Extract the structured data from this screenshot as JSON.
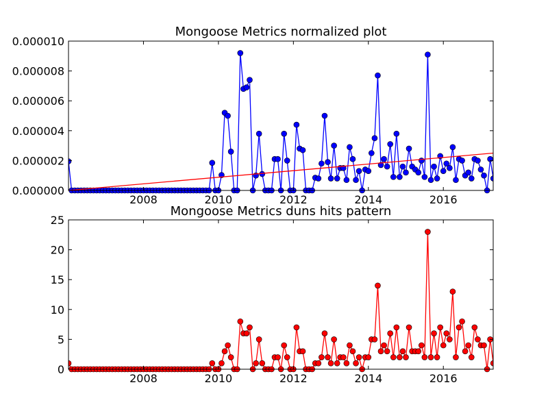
{
  "chart_data": [
    {
      "type": "line",
      "title": "Mongoose Metrics normalized plot",
      "xlabel": "",
      "ylabel": "",
      "xlim": [
        2006.0,
        2017.33
      ],
      "ylim": [
        0,
        1e-05
      ],
      "xticks": [
        "2008",
        "2010",
        "2012",
        "2014",
        "2016"
      ],
      "yticks": [
        "0.000000",
        "0.000002",
        "0.000004",
        "0.000006",
        "0.000008",
        "0.000010"
      ],
      "grid": false,
      "legend": "none",
      "series": [
        {
          "color": "#0000ff",
          "marker": "circle",
          "x": [
            2006.0,
            2006.083,
            2006.167,
            2006.25,
            2006.333,
            2006.417,
            2006.5,
            2006.583,
            2006.667,
            2006.75,
            2006.833,
            2006.917,
            2007.0,
            2007.083,
            2007.167,
            2007.25,
            2007.333,
            2007.417,
            2007.5,
            2007.583,
            2007.667,
            2007.75,
            2007.833,
            2007.917,
            2008.0,
            2008.083,
            2008.167,
            2008.25,
            2008.333,
            2008.417,
            2008.5,
            2008.583,
            2008.667,
            2008.75,
            2008.833,
            2008.917,
            2009.0,
            2009.083,
            2009.167,
            2009.25,
            2009.333,
            2009.417,
            2009.5,
            2009.583,
            2009.667,
            2009.75,
            2009.833,
            2009.917,
            2010.0,
            2010.083,
            2010.167,
            2010.25,
            2010.333,
            2010.417,
            2010.5,
            2010.583,
            2010.667,
            2010.75,
            2010.833,
            2010.917,
            2011.0,
            2011.083,
            2011.167,
            2011.25,
            2011.333,
            2011.417,
            2011.5,
            2011.583,
            2011.667,
            2011.75,
            2011.833,
            2011.917,
            2012.0,
            2012.083,
            2012.167,
            2012.25,
            2012.333,
            2012.417,
            2012.5,
            2012.583,
            2012.667,
            2012.75,
            2012.833,
            2012.917,
            2013.0,
            2013.083,
            2013.167,
            2013.25,
            2013.333,
            2013.417,
            2013.5,
            2013.583,
            2013.667,
            2013.75,
            2013.833,
            2013.917,
            2014.0,
            2014.083,
            2014.167,
            2014.25,
            2014.333,
            2014.417,
            2014.5,
            2014.583,
            2014.667,
            2014.75,
            2014.833,
            2014.917,
            2015.0,
            2015.083,
            2015.167,
            2015.25,
            2015.333,
            2015.417,
            2015.5,
            2015.583,
            2015.667,
            2015.75,
            2015.833,
            2015.917,
            2016.0,
            2016.083,
            2016.167,
            2016.25,
            2016.333,
            2016.417,
            2016.5,
            2016.583,
            2016.667,
            2016.75,
            2016.833,
            2016.917,
            2017.0,
            2017.083,
            2017.167,
            2017.25,
            2017.333
          ],
          "y": [
            1.95e-06,
            0,
            0,
            0,
            0,
            0,
            0,
            0,
            0,
            0,
            0,
            0,
            0,
            0,
            0,
            0,
            0,
            0,
            0,
            0,
            0,
            0,
            0,
            0,
            0,
            0,
            0,
            0,
            0,
            0,
            0,
            0,
            0,
            0,
            0,
            0,
            0,
            0,
            0,
            0,
            0,
            0,
            0,
            0,
            0,
            0,
            1.85e-06,
            0,
            0,
            1.03e-06,
            5.2e-06,
            5e-06,
            2.6e-06,
            0,
            0,
            9.2e-06,
            6.8e-06,
            6.9e-06,
            7.4e-06,
            0,
            1e-06,
            3.8e-06,
            1.1e-06,
            0,
            0,
            0,
            2.1e-06,
            2.1e-06,
            0,
            3.8e-06,
            2e-06,
            0,
            0,
            4.4e-06,
            2.8e-06,
            2.7e-06,
            0,
            0,
            0,
            8.5e-07,
            8e-07,
            1.8e-06,
            5e-06,
            1.9e-06,
            8e-07,
            3e-06,
            8e-07,
            1.5e-06,
            1.5e-06,
            7e-07,
            2.9e-06,
            2.1e-06,
            7e-07,
            1.3e-06,
            0,
            1.4e-06,
            1.3e-06,
            2.5e-06,
            3.5e-06,
            7.7e-06,
            1.7e-06,
            2.1e-06,
            1.6e-06,
            3.1e-06,
            9e-07,
            3.8e-06,
            9e-07,
            1.6e-06,
            1.2e-06,
            2.8e-06,
            1.6e-06,
            1.4e-06,
            1.2e-06,
            2e-06,
            9e-07,
            9.1e-06,
            7e-07,
            1.6e-06,
            8e-07,
            2.3e-06,
            1.3e-06,
            1.8e-06,
            1.5e-06,
            2.9e-06,
            7e-07,
            2.1e-06,
            2e-06,
            1e-06,
            1.2e-06,
            8e-07,
            2.1e-06,
            2e-06,
            1.4e-06,
            1e-06,
            0,
            2.1e-06,
            8e-07
          ]
        },
        {
          "color": "#ff0000",
          "marker": "none",
          "x": [
            2006.0,
            2017.33
          ],
          "y": [
            0,
            2.5e-06
          ]
        }
      ]
    },
    {
      "type": "line",
      "title": "Mongoose Metrics duns hits pattern",
      "xlabel": "",
      "ylabel": "",
      "xlim": [
        2006.0,
        2017.33
      ],
      "ylim": [
        0,
        25
      ],
      "xticks": [
        "2008",
        "2010",
        "2012",
        "2014",
        "2016"
      ],
      "yticks": [
        "0",
        "5",
        "10",
        "15",
        "20",
        "25"
      ],
      "grid": false,
      "legend": "none",
      "series": [
        {
          "color": "#ff0000",
          "marker": "circle",
          "x": [
            2006.0,
            2006.083,
            2006.167,
            2006.25,
            2006.333,
            2006.417,
            2006.5,
            2006.583,
            2006.667,
            2006.75,
            2006.833,
            2006.917,
            2007.0,
            2007.083,
            2007.167,
            2007.25,
            2007.333,
            2007.417,
            2007.5,
            2007.583,
            2007.667,
            2007.75,
            2007.833,
            2007.917,
            2008.0,
            2008.083,
            2008.167,
            2008.25,
            2008.333,
            2008.417,
            2008.5,
            2008.583,
            2008.667,
            2008.75,
            2008.833,
            2008.917,
            2009.0,
            2009.083,
            2009.167,
            2009.25,
            2009.333,
            2009.417,
            2009.5,
            2009.583,
            2009.667,
            2009.75,
            2009.833,
            2009.917,
            2010.0,
            2010.083,
            2010.167,
            2010.25,
            2010.333,
            2010.417,
            2010.5,
            2010.583,
            2010.667,
            2010.75,
            2010.833,
            2010.917,
            2011.0,
            2011.083,
            2011.167,
            2011.25,
            2011.333,
            2011.417,
            2011.5,
            2011.583,
            2011.667,
            2011.75,
            2011.833,
            2011.917,
            2012.0,
            2012.083,
            2012.167,
            2012.25,
            2012.333,
            2012.417,
            2012.5,
            2012.583,
            2012.667,
            2012.75,
            2012.833,
            2012.917,
            2013.0,
            2013.083,
            2013.167,
            2013.25,
            2013.333,
            2013.417,
            2013.5,
            2013.583,
            2013.667,
            2013.75,
            2013.833,
            2013.917,
            2014.0,
            2014.083,
            2014.167,
            2014.25,
            2014.333,
            2014.417,
            2014.5,
            2014.583,
            2014.667,
            2014.75,
            2014.833,
            2014.917,
            2015.0,
            2015.083,
            2015.167,
            2015.25,
            2015.333,
            2015.417,
            2015.5,
            2015.583,
            2015.667,
            2015.75,
            2015.833,
            2015.917,
            2016.0,
            2016.083,
            2016.167,
            2016.25,
            2016.333,
            2016.417,
            2016.5,
            2016.583,
            2016.667,
            2016.75,
            2016.833,
            2016.917,
            2017.0,
            2017.083,
            2017.167,
            2017.25,
            2017.333
          ],
          "y": [
            1,
            0,
            0,
            0,
            0,
            0,
            0,
            0,
            0,
            0,
            0,
            0,
            0,
            0,
            0,
            0,
            0,
            0,
            0,
            0,
            0,
            0,
            0,
            0,
            0,
            0,
            0,
            0,
            0,
            0,
            0,
            0,
            0,
            0,
            0,
            0,
            0,
            0,
            0,
            0,
            0,
            0,
            0,
            0,
            0,
            0,
            1,
            0,
            0,
            1,
            3,
            4,
            2,
            0,
            0,
            8,
            6,
            6,
            7,
            0,
            1,
            5,
            1,
            0,
            0,
            0,
            2,
            2,
            0,
            4,
            2,
            0,
            0,
            7,
            3,
            3,
            0,
            0,
            0,
            1,
            1,
            2,
            6,
            2,
            1,
            5,
            1,
            2,
            2,
            1,
            4,
            3,
            1,
            2,
            0,
            2,
            2,
            5,
            5,
            14,
            3,
            4,
            3,
            6,
            2,
            7,
            2,
            3,
            2,
            7,
            3,
            3,
            3,
            4,
            2,
            23,
            2,
            6,
            2,
            7,
            4,
            6,
            5,
            13,
            2,
            7,
            8,
            3,
            4,
            2,
            7,
            5,
            4,
            4,
            0,
            5,
            1
          ]
        }
      ]
    }
  ]
}
